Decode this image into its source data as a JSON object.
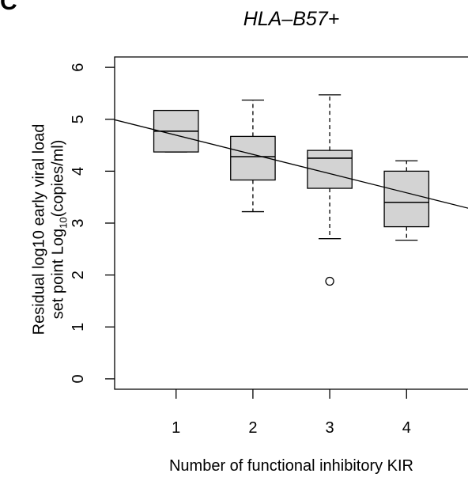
{
  "panel_letter": "C",
  "chart_data": {
    "type": "box",
    "title": "HLA–B57+",
    "xlabel": "Number of functional inhibitory KIR",
    "ylabel_line1": "Residual log10 early viral load",
    "ylabel_line2_prefix": "set point Log",
    "ylabel_line2_sub": "10",
    "ylabel_line2_suffix": "(copies/ml)",
    "categories": [
      "1",
      "2",
      "3",
      "4"
    ],
    "boxes": [
      {
        "category": "1",
        "whisker_low": 4.37,
        "q1": 4.37,
        "median": 4.77,
        "q3": 5.17,
        "whisker_high": 5.17,
        "outliers": []
      },
      {
        "category": "2",
        "whisker_low": 3.22,
        "q1": 3.83,
        "median": 4.28,
        "q3": 4.67,
        "whisker_high": 5.37,
        "outliers": []
      },
      {
        "category": "3",
        "whisker_low": 2.7,
        "q1": 3.67,
        "median": 4.25,
        "q3": 4.4,
        "whisker_high": 5.47,
        "outliers": [
          1.88
        ]
      },
      {
        "category": "4",
        "whisker_low": 2.67,
        "q1": 2.93,
        "median": 3.4,
        "q3": 4.0,
        "whisker_high": 4.2,
        "outliers": []
      }
    ],
    "trend_line": {
      "x": [
        0.2,
        4.82
      ],
      "y": [
        4.99,
        3.28
      ]
    },
    "ylim": [
      -0.2,
      6.2
    ],
    "xlim": [
      0.2,
      4.8
    ],
    "yticks": [
      0,
      1,
      2,
      3,
      4,
      5,
      6
    ],
    "box_fill": "#d3d3d3",
    "line_color": "#000000",
    "grid": false
  }
}
